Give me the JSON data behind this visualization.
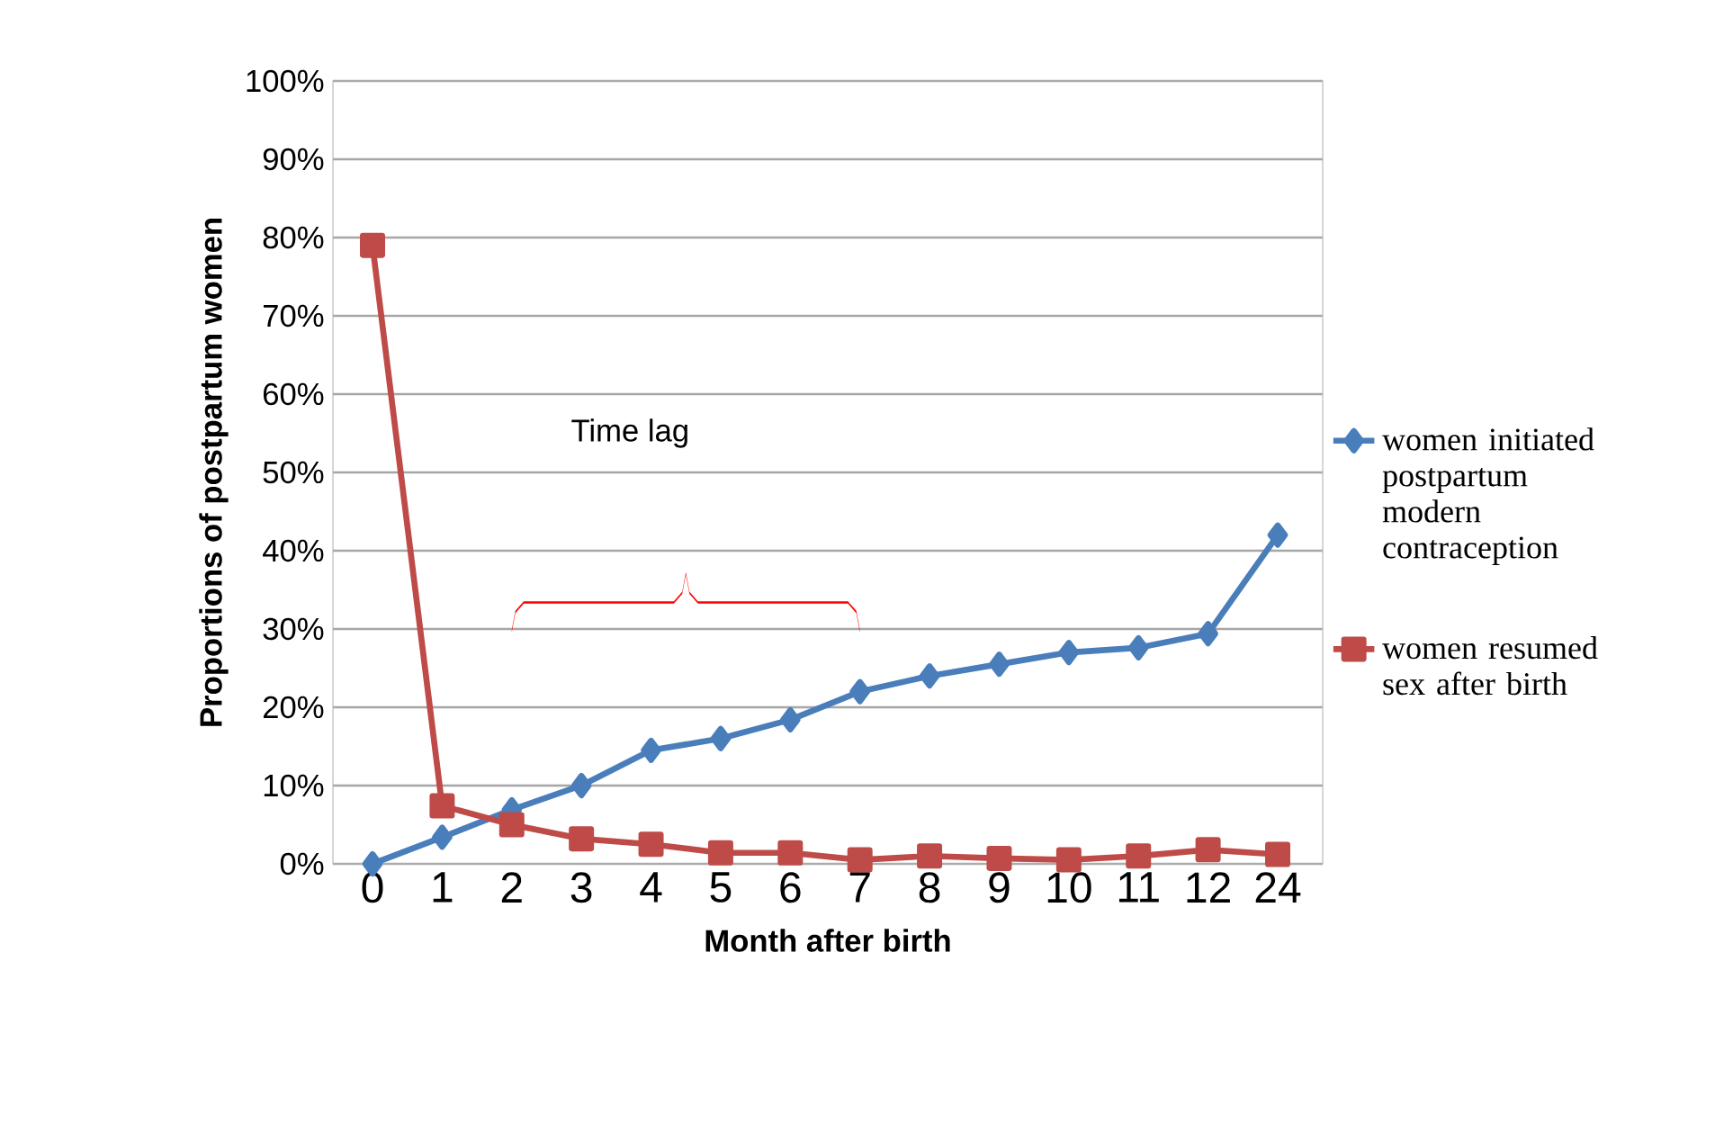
{
  "chart_data": {
    "type": "line",
    "xlabel": "Month after birth",
    "ylabel": "Proportions of postpartum women",
    "categories": [
      "0",
      "1",
      "2",
      "3",
      "4",
      "5",
      "6",
      "7",
      "8",
      "9",
      "10",
      "11",
      "12",
      "24"
    ],
    "series": [
      {
        "name": "women initiated postpartum modern contraception",
        "color": "#4a7ebb",
        "marker": "diamond",
        "values": [
          0,
          3.4,
          6.9,
          10,
          14.5,
          16,
          18.4,
          22,
          24,
          25.5,
          27,
          27.6,
          29.4,
          42
        ]
      },
      {
        "name": "women resumed sex after birth",
        "color": "#be4b48",
        "marker": "square",
        "values": [
          79,
          7.4,
          5,
          3.2,
          2.5,
          1.4,
          1.4,
          0.5,
          1,
          0.7,
          0.5,
          1,
          1.8,
          1.2
        ]
      }
    ],
    "ylim": [
      0,
      100
    ],
    "yticks": [
      {
        "value": 0,
        "label": "0%"
      },
      {
        "value": 10,
        "label": "10%"
      },
      {
        "value": 20,
        "label": "20%"
      },
      {
        "value": 30,
        "label": "30%"
      },
      {
        "value": 40,
        "label": "40%"
      },
      {
        "value": 50,
        "label": "50%"
      },
      {
        "value": 60,
        "label": "60%"
      },
      {
        "value": 70,
        "label": "70%"
      },
      {
        "value": 80,
        "label": "80%"
      },
      {
        "value": 90,
        "label": "90%"
      },
      {
        "value": 100,
        "label": "100%"
      }
    ],
    "grid": "y",
    "legend": "right",
    "annotations": [
      "Time lag"
    ]
  }
}
